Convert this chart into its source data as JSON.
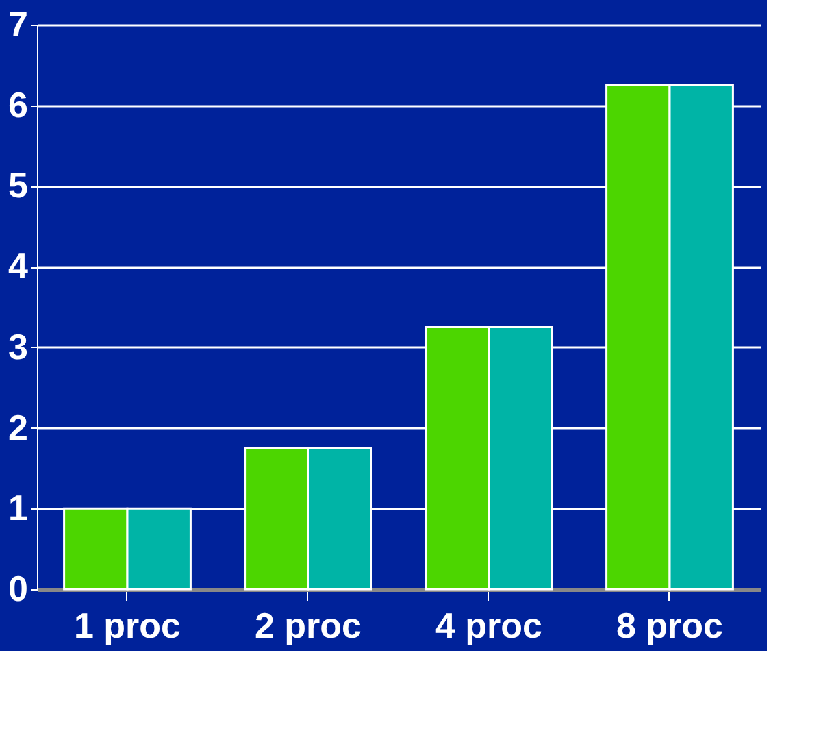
{
  "chart_data": {
    "type": "bar",
    "categories": [
      "1 proc",
      "2 proc",
      "4 proc",
      "8 proc"
    ],
    "series": [
      {
        "color": "#4cd600",
        "values": [
          1,
          1.75,
          3.25,
          6.25
        ]
      },
      {
        "color": "#00b4a6",
        "values": [
          1,
          1.75,
          3.25,
          6.25
        ]
      }
    ],
    "ylim": [
      0,
      7
    ],
    "yticks": [
      0,
      1,
      2,
      3,
      4,
      5,
      6,
      7
    ],
    "grid": "y",
    "legend": false
  }
}
